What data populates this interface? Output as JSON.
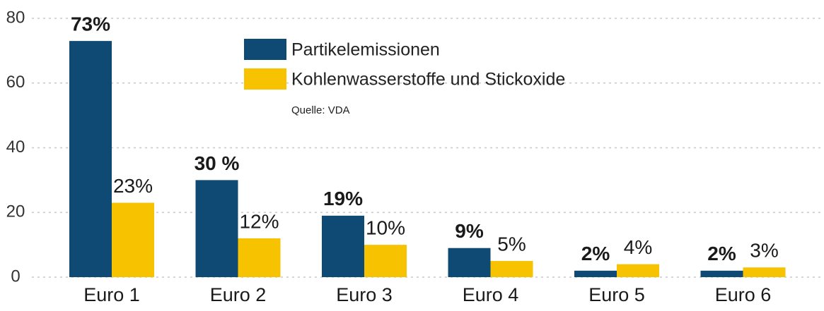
{
  "chart_data": {
    "type": "bar",
    "categories": [
      "Euro 1",
      "Euro 2",
      "Euro 3",
      "Euro 4",
      "Euro 5",
      "Euro 6"
    ],
    "series": [
      {
        "name": "Partikelemissionen",
        "color": "#0e4a74",
        "values": [
          73,
          30,
          19,
          9,
          2,
          2
        ],
        "value_labels": [
          "73%",
          "30 %",
          "19%",
          "9%",
          "2%",
          "2%"
        ]
      },
      {
        "name": "Kohlenwasserstoffe und Stickoxide",
        "color": "#f7c200",
        "values": [
          23,
          12,
          10,
          5,
          4,
          3
        ],
        "value_labels": [
          "23%",
          "12%",
          "10%",
          "5%",
          "4%",
          "3%"
        ]
      }
    ],
    "source": "Quelle: VDA",
    "ylim": [
      0,
      80
    ],
    "yticks": [
      0,
      20,
      40,
      60,
      80
    ],
    "grid": true
  }
}
